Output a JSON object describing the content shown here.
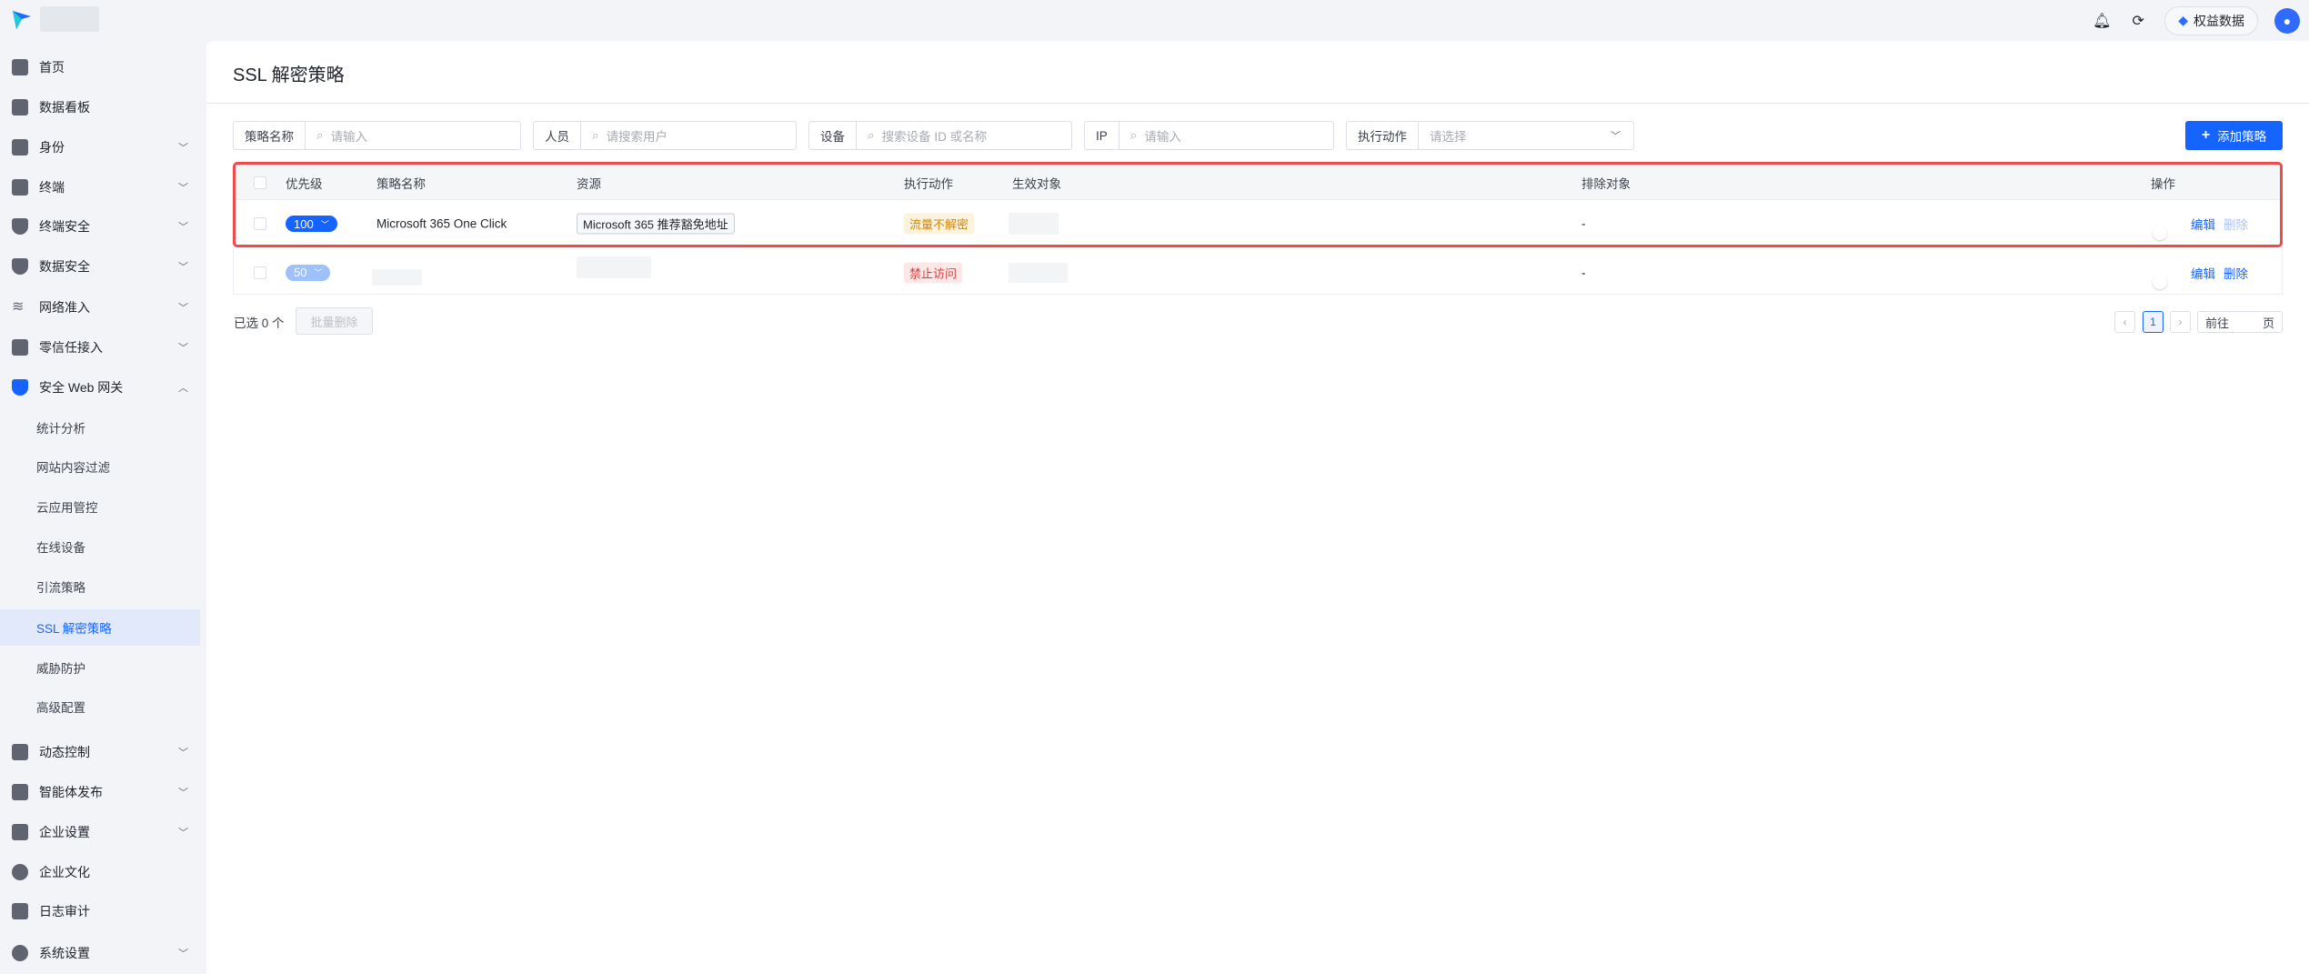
{
  "topbar": {
    "benefit_label": "权益数据",
    "icons": [
      "bell-icon",
      "headset-icon",
      "diamond-icon",
      "user-avatar-icon"
    ]
  },
  "sidebar": {
    "items": [
      {
        "label": "首页",
        "icon": "home-icon",
        "expandable": false
      },
      {
        "label": "数据看板",
        "icon": "dashboard-icon",
        "expandable": false
      },
      {
        "label": "身份",
        "icon": "identity-icon",
        "expandable": true
      },
      {
        "label": "终端",
        "icon": "devices-icon",
        "expandable": true
      },
      {
        "label": "终端安全",
        "icon": "shield-icon",
        "expandable": true
      },
      {
        "label": "数据安全",
        "icon": "data-shield-icon",
        "expandable": true
      },
      {
        "label": "网络准入",
        "icon": "wifi-icon",
        "expandable": true
      },
      {
        "label": "零信任接入",
        "icon": "vpn-icon",
        "expandable": true
      },
      {
        "label": "安全 Web 网关",
        "icon": "cloud-shield-icon",
        "expandable": true,
        "expanded": true
      }
    ],
    "subitems": [
      "统计分析",
      "网站内容过滤",
      "云应用管控",
      "在线设备",
      "引流策略",
      "SSL 解密策略",
      "威胁防护",
      "高级配置"
    ],
    "active_subitem": "SSL 解密策略",
    "items_after": [
      {
        "label": "动态控制",
        "icon": "dynamic-icon",
        "expandable": true
      },
      {
        "label": "智能体发布",
        "icon": "apps-icon",
        "expandable": true
      },
      {
        "label": "企业设置",
        "icon": "building-icon",
        "expandable": true
      },
      {
        "label": "企业文化",
        "icon": "culture-icon",
        "expandable": false
      },
      {
        "label": "日志审计",
        "icon": "log-icon",
        "expandable": false
      },
      {
        "label": "系统设置",
        "icon": "gear-icon",
        "expandable": true
      }
    ]
  },
  "page": {
    "title": "SSL 解密策略"
  },
  "filters": [
    {
      "label": "策略名称",
      "placeholder": "请输入"
    },
    {
      "label": "人员",
      "placeholder": "请搜索用户"
    },
    {
      "label": "设备",
      "placeholder": "搜索设备 ID 或名称"
    },
    {
      "label": "IP",
      "placeholder": "请输入"
    },
    {
      "label": "执行动作",
      "placeholder": "请选择"
    }
  ],
  "add_button": "添加策略",
  "table": {
    "headers": [
      "优先级",
      "策略名称",
      "资源",
      "执行动作",
      "生效对象",
      "排除对象",
      "操作"
    ],
    "rows": [
      {
        "priority": "100",
        "name": "Microsoft 365 One Click",
        "resource": "Microsoft 365 推荐豁免地址",
        "action": "流量不解密",
        "action_color": "#d4880f",
        "action_bg": "#fdf3dc",
        "exclude": "-",
        "enabled": false,
        "edit": "编辑",
        "delete": "删除",
        "delete_disabled": true
      },
      {
        "priority": "50",
        "name": "",
        "resource": "",
        "action": "禁止访问",
        "action_color": "#e5383b",
        "action_bg": "#fde8e8",
        "exclude": "-",
        "enabled": false,
        "edit": "编辑",
        "delete": "删除",
        "delete_disabled": false
      }
    ]
  },
  "footer": {
    "selected": "已选 0 个",
    "batch_delete": "批量删除",
    "current_page": "1",
    "goto_prefix": "前往",
    "goto_suffix": "页"
  },
  "colors": {
    "primary": "#1664ff",
    "highlight": "#ee4b4b"
  }
}
